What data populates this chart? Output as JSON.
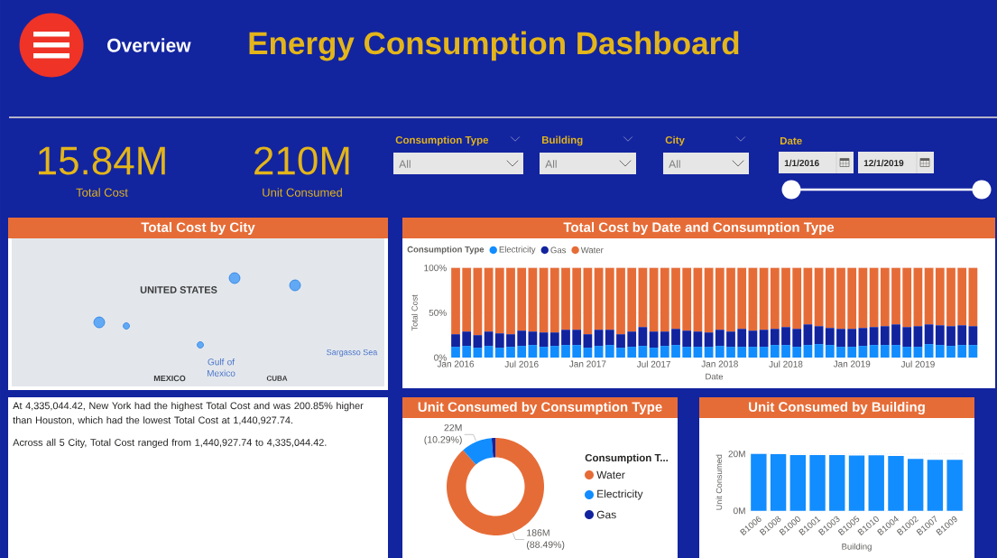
{
  "chart_data": [
    {
      "type": "other",
      "title": "Energy Consumption Dashboard",
      "annotations": [
        "Overview"
      ]
    },
    {
      "type": "other",
      "annotations": [
        "15.84M",
        "Total Cost"
      ]
    },
    {
      "type": "other",
      "annotations": [
        "210M",
        "Unit Consumed"
      ]
    },
    {
      "type": "other",
      "title": "Consumption Type",
      "annotations": [
        "All"
      ]
    },
    {
      "type": "other",
      "title": "Building",
      "annotations": [
        "All"
      ]
    },
    {
      "type": "other",
      "title": "City",
      "annotations": [
        "All"
      ]
    },
    {
      "type": "other",
      "title": "Date",
      "annotations": [
        "1/1/2016",
        "12/1/2019"
      ]
    },
    {
      "type": "other",
      "title": "Total Cost by City",
      "annotations": [
        "UNITED STATES",
        "MEXICO",
        "Gulf of Mexico",
        "Sargasso Sea",
        "CUBA"
      ]
    },
    {
      "type": "bar",
      "stacked": true,
      "title": "Total Cost by Date and Consumption Type",
      "xlabel": "Date",
      "ylabel": "Total Cost",
      "legend_title": "Consumption Type",
      "legend": "top left",
      "grid": "y",
      "x": [
        "2016-01",
        "2016-02",
        "2016-03",
        "2016-04",
        "2016-05",
        "2016-06",
        "2016-07",
        "2016-08",
        "2016-09",
        "2016-10",
        "2016-11",
        "2016-12",
        "2017-01",
        "2017-02",
        "2017-03",
        "2017-04",
        "2017-05",
        "2017-06",
        "2017-07",
        "2017-08",
        "2017-09",
        "2017-10",
        "2017-11",
        "2017-12",
        "2018-01",
        "2018-02",
        "2018-03",
        "2018-04",
        "2018-05",
        "2018-06",
        "2018-07",
        "2018-08",
        "2018-09",
        "2018-10",
        "2018-11",
        "2018-12",
        "2019-01",
        "2019-02",
        "2019-03",
        "2019-04",
        "2019-05",
        "2019-06",
        "2019-07",
        "2019-08",
        "2019-09",
        "2019-10",
        "2019-11",
        "2019-12"
      ],
      "xlim": [
        "2015-12-16",
        "2019-12-16"
      ],
      "xticks": [
        {
          "value": "2016-01",
          "label": "Jan 2016"
        },
        {
          "value": "2016-07",
          "label": "Jul 2016"
        },
        {
          "value": "2017-01",
          "label": "Jan 2017"
        },
        {
          "value": "2017-07",
          "label": "Jul 2017"
        },
        {
          "value": "2018-01",
          "label": "Jan 2018"
        },
        {
          "value": "2018-07",
          "label": "Jul 2018"
        },
        {
          "value": "2019-01",
          "label": "Jan 2019"
        },
        {
          "value": "2019-07",
          "label": "Jul 2019"
        }
      ],
      "ylim": [
        0,
        100
      ],
      "yticks": [
        {
          "value": 0,
          "label": "0%"
        },
        {
          "value": 50,
          "label": "50%"
        },
        {
          "value": 100,
          "label": "100%"
        }
      ],
      "series": [
        {
          "name": "Electricity",
          "color": "#118DFF",
          "values": [
            12,
            13,
            11,
            13,
            11,
            12,
            13,
            14,
            12,
            13,
            14,
            14,
            11,
            13,
            14,
            11,
            12,
            13,
            11,
            13,
            14,
            12,
            12,
            12,
            13,
            12,
            12,
            12,
            12,
            14,
            14,
            12,
            14,
            15,
            14,
            12,
            12,
            13,
            14,
            14,
            14,
            12,
            12,
            15,
            14,
            13,
            14,
            14
          ]
        },
        {
          "name": "Gas",
          "color": "#12239E",
          "values": [
            14,
            16,
            14,
            16,
            16,
            14,
            17,
            15,
            16,
            15,
            17,
            17,
            15,
            18,
            17,
            15,
            17,
            21,
            18,
            16,
            18,
            18,
            17,
            16,
            18,
            17,
            20,
            18,
            19,
            18,
            20,
            20,
            23,
            20,
            19,
            20,
            20,
            20,
            20,
            21,
            23,
            22,
            23,
            22,
            22,
            22,
            22,
            21
          ]
        },
        {
          "name": "Water",
          "color": "#E66C37",
          "values": [
            74,
            71,
            75,
            71,
            73,
            74,
            70,
            71,
            72,
            72,
            69,
            69,
            74,
            69,
            69,
            74,
            71,
            66,
            71,
            71,
            68,
            70,
            71,
            72,
            69,
            71,
            68,
            70,
            69,
            68,
            66,
            68,
            63,
            65,
            67,
            68,
            68,
            67,
            66,
            65,
            63,
            66,
            65,
            63,
            64,
            65,
            64,
            65
          ]
        }
      ]
    },
    {
      "type": "other",
      "annotations": [
        "At 4,335,044.42, New York had the highest Total Cost and was 200.85% higher than Houston, which had the lowest Total Cost at 1,440,927.74.",
        "Across all 5 City, Total Cost ranged from 1,440,927.74 to 4,335,044.42."
      ]
    },
    {
      "type": "donut",
      "title": "Unit Consumed by Consumption Type",
      "legend_title": "Consumption T...",
      "legend": "right",
      "categories": [
        "Water",
        "Electricity",
        "Gas"
      ],
      "values": [
        88.49,
        10.29,
        1.22
      ],
      "colors": [
        "#E66C37",
        "#118DFF",
        "#12239E"
      ],
      "value_labels": [
        "186M (88.49%)",
        "22M (10.29%)",
        null
      ]
    },
    {
      "type": "bar",
      "title": "Unit Consumed by Building",
      "xlabel": "Building",
      "ylabel": "Unit Consumed",
      "grid": "y",
      "categories": [
        "B1006",
        "B1008",
        "B1000",
        "B1001",
        "B1003",
        "B1005",
        "B1010",
        "B1004",
        "B1002",
        "B1007",
        "B1009"
      ],
      "values": [
        20.0,
        19.9,
        19.6,
        19.6,
        19.6,
        19.4,
        19.5,
        19.3,
        18.2,
        17.9,
        17.9
      ],
      "color": "#118DFF",
      "ylim": [
        0,
        20
      ],
      "yticks": [
        {
          "value": 0,
          "label": "0M"
        },
        {
          "value": 20,
          "label": "20M"
        }
      ]
    }
  ]
}
